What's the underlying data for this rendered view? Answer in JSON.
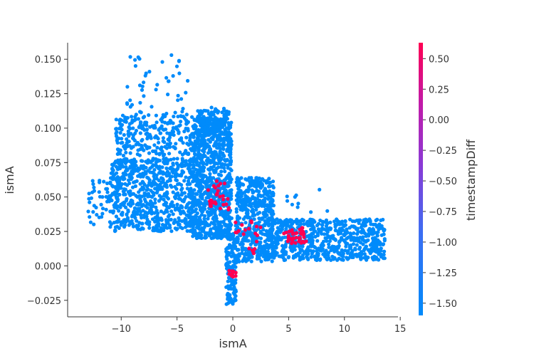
{
  "chart_data": {
    "type": "scatter",
    "title": "",
    "xlabel": "ismA",
    "ylabel": "ismA",
    "xlim": [
      -14.8,
      14.8
    ],
    "ylim": [
      -0.037,
      0.162
    ],
    "xticks": [
      -10,
      -5,
      0,
      5,
      10,
      15
    ],
    "xtick_labels": [
      "−10",
      "−5",
      "0",
      "5",
      "10",
      "15"
    ],
    "yticks": [
      -0.025,
      0,
      0.025,
      0.05,
      0.075,
      0.1,
      0.125,
      0.15
    ],
    "ytick_labels": [
      "−0.025",
      "0.000",
      "0.025",
      "0.050",
      "0.075",
      "0.100",
      "0.125",
      "0.150"
    ],
    "grid": false,
    "colorbar": {
      "label": "timestampDiff",
      "range": [
        -1.6,
        0.63
      ],
      "ticks": [
        0.5,
        0.25,
        0.0,
        -0.25,
        -0.5,
        -0.75,
        -1.0,
        -1.25,
        -1.5
      ],
      "tick_labels": [
        "0.50",
        "0.25",
        "0.00",
        "−0.25",
        "−0.50",
        "−0.75",
        "−1.00",
        "−1.25",
        "−1.50"
      ],
      "colors": [
        "#008bfb",
        "#6a56e8",
        "#b81fb1",
        "#ff0052"
      ]
    },
    "series": [
      {
        "color": "#008bfb",
        "clusters": [
          {
            "x": [
              -3.6,
              -0.1
            ],
            "y": [
              0.02,
              0.107
            ],
            "n": 900
          },
          {
            "x": [
              -3.2,
              -0.3
            ],
            "y": [
              0.095,
              0.115
            ],
            "n": 120
          },
          {
            "x": [
              -11,
              -3.5
            ],
            "y": [
              0.025,
              0.078
            ],
            "n": 700
          },
          {
            "x": [
              -13,
              -11
            ],
            "y": [
              0.03,
              0.062
            ],
            "n": 40
          },
          {
            "x": [
              -10.5,
              -3.5
            ],
            "y": [
              0.08,
              0.11
            ],
            "n": 260
          },
          {
            "x": [
              -9.6,
              -4
            ],
            "y": [
              0.11,
              0.153
            ],
            "n": 45
          },
          {
            "x": [
              -0.6,
              0.3
            ],
            "y": [
              -0.028,
              0.03
            ],
            "n": 140
          },
          {
            "x": [
              0.3,
              3.7
            ],
            "y": [
              0.003,
              0.064
            ],
            "n": 520
          },
          {
            "x": [
              3.5,
              13.7
            ],
            "y": [
              0.004,
              0.034
            ],
            "n": 650
          },
          {
            "x": [
              4.6,
              9.2
            ],
            "y": [
              0.038,
              0.062
            ],
            "n": 10
          }
        ]
      },
      {
        "color": "#ff0052",
        "clusters": [
          {
            "x": [
              -2.3,
              -0.3
            ],
            "y": [
              0.04,
              0.062
            ],
            "n": 28
          },
          {
            "x": [
              0.2,
              2.5
            ],
            "y": [
              0.022,
              0.034
            ],
            "n": 14
          },
          {
            "x": [
              1.4,
              2.3
            ],
            "y": [
              0.009,
              0.018
            ],
            "n": 6
          },
          {
            "x": [
              4.5,
              6.6
            ],
            "y": [
              0.016,
              0.028
            ],
            "n": 40
          },
          {
            "x": [
              -0.4,
              0.3
            ],
            "y": [
              -0.008,
              -0.003
            ],
            "n": 10
          }
        ]
      }
    ]
  }
}
